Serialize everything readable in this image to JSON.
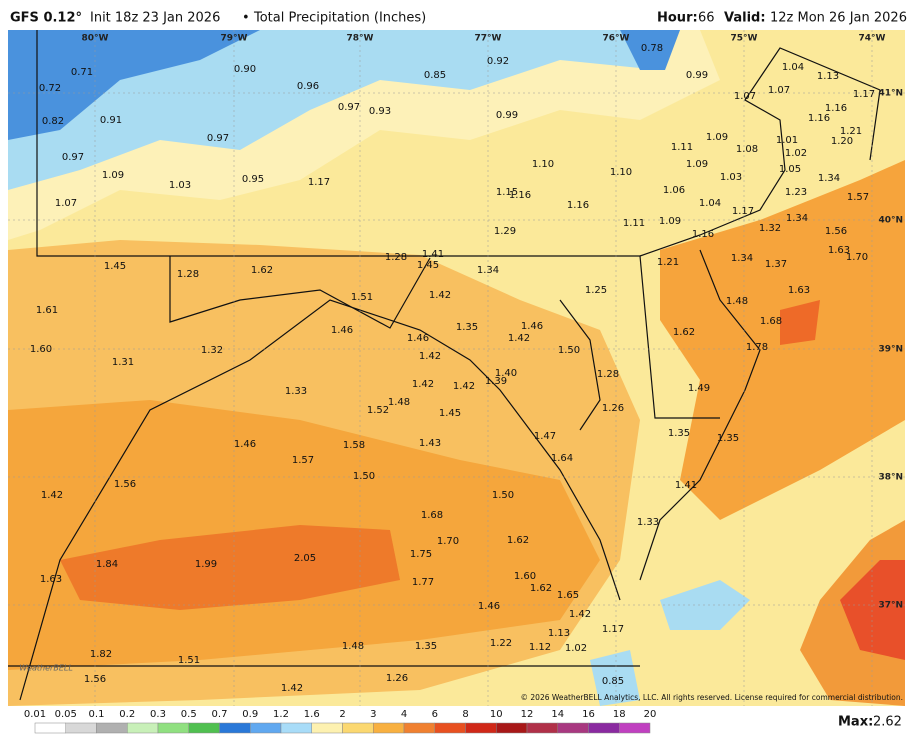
{
  "header": {
    "model": "GFS 0.12°",
    "init": "Init 18z 23 Jan 2026",
    "separator": "•",
    "product": "Total Precipitation (Inches)",
    "hour_label": "Hour:",
    "hour": "66",
    "valid_label": "Valid:",
    "valid": "12z Mon 26 Jan 2026"
  },
  "map": {
    "longitudes": [
      "80°W",
      "79°W",
      "78°W",
      "77°W",
      "76°W",
      "75°W",
      "74°W"
    ],
    "latitudes": [
      "41°N",
      "40°N",
      "39°N",
      "38°N",
      "37°N"
    ],
    "labels": [
      "0.71",
      "0.72",
      "0.82",
      "0.91",
      "0.97",
      "1.09",
      "1.07",
      "1.03",
      "0.90",
      "0.96",
      "0.97",
      "0.95",
      "1.17",
      "0.97",
      "0.93",
      "0.85",
      "0.92",
      "0.99",
      "0.78",
      "0.99",
      "1.04",
      "1.13",
      "1.07",
      "1.07",
      "1.17",
      "1.16",
      "1.16",
      "1.21",
      "1.20",
      "1.09",
      "1.11",
      "1.08",
      "1.01",
      "1.02",
      "1.05",
      "1.09",
      "1.03",
      "1.06",
      "1.04",
      "1.23",
      "1.34",
      "1.57",
      "1.17",
      "1.34",
      "1.56",
      "1.32",
      "1.63",
      "1.70",
      "1.10",
      "1.10",
      "1.15",
      "1.16",
      "1.16",
      "1.11",
      "1.09",
      "1.16",
      "1.29",
      "1.34",
      "1.37",
      "1.21",
      "1.28",
      "1.41",
      "1.45",
      "1.34",
      "1.45",
      "1.28",
      "1.62",
      "1.51",
      "1.42",
      "1.25",
      "1.48",
      "1.63",
      "1.61",
      "1.46",
      "1.35",
      "1.46",
      "1.42",
      "1.62",
      "1.68",
      "1.60",
      "1.32",
      "1.31",
      "1.46",
      "1.42",
      "1.50",
      "1.78",
      "1.49",
      "1.33",
      "1.42",
      "1.42",
      "1.39",
      "1.40",
      "1.28",
      "1.52",
      "1.48",
      "1.26",
      "1.45",
      "1.43",
      "1.47",
      "1.35",
      "1.35",
      "1.46",
      "1.58",
      "1.64",
      "1.57",
      "1.50",
      "1.56",
      "1.42",
      "1.41",
      "1.50",
      "1.68",
      "1.33",
      "1.62",
      "1.70",
      "1.75",
      "2.05",
      "1.84",
      "1.99",
      "1.63",
      "1.77",
      "1.60",
      "1.62",
      "1.65",
      "1.46",
      "1.42",
      "1.13",
      "1.17",
      "1.22",
      "1.12",
      "1.02",
      "1.48",
      "1.35",
      "1.82",
      "1.51",
      "1.26",
      "1.56",
      "1.42",
      "0.85"
    ],
    "credit": "© 2026 WeatherBELL Analytics, LLC. All rights reserved. License required for commercial distribution.",
    "logo": "WeatherBELL"
  },
  "legend": {
    "ticks": [
      "0.01",
      "0.05",
      "0.1",
      "0.2",
      "0.3",
      "0.5",
      "0.7",
      "0.9",
      "1.2",
      "1.6",
      "2",
      "3",
      "4",
      "6",
      "8",
      "10",
      "12",
      "14",
      "16",
      "18",
      "20"
    ],
    "max_label": "Max:",
    "max": "2.62"
  }
}
